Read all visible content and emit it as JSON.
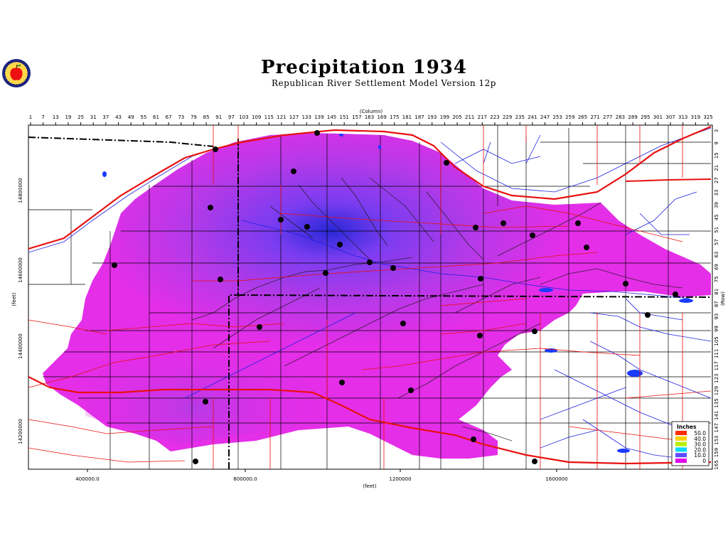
{
  "header": {
    "title": "Precipitation 1934",
    "subtitle": "Republican River Settlement Model Version 12p"
  },
  "logo": {
    "icon": "apple-seal-icon"
  },
  "axes": {
    "top_label": "(Column)",
    "bottom_label": "(feet)",
    "left_label": "(feet)",
    "right_label": "(Row)",
    "column_ticks": [
      "1",
      "7",
      "13",
      "19",
      "25",
      "31",
      "37",
      "43",
      "49",
      "55",
      "61",
      "67",
      "73",
      "79",
      "85",
      "91",
      "97",
      "103",
      "109",
      "115",
      "121",
      "127",
      "133",
      "139",
      "145",
      "151",
      "157",
      "163",
      "169",
      "175",
      "181",
      "187",
      "193",
      "199",
      "205",
      "211",
      "217",
      "223",
      "229",
      "235",
      "241",
      "247",
      "253",
      "259",
      "265",
      "271",
      "277",
      "283",
      "289",
      "295",
      "301",
      "307",
      "313",
      "319",
      "325"
    ],
    "row_ticks": [
      "3",
      "9",
      "15",
      "21",
      "27",
      "33",
      "39",
      "45",
      "51",
      "57",
      "63",
      "69",
      "75",
      "81",
      "87",
      "93",
      "99",
      "105",
      "111",
      "117",
      "123",
      "129",
      "135",
      "141",
      "147",
      "153",
      "159",
      "165"
    ],
    "x_ticks": [
      "400000.0",
      "800000.0",
      "1200000",
      "1600000"
    ],
    "y_ticks": [
      "14800000",
      "14600000",
      "14400000",
      "14200000"
    ]
  },
  "legend": {
    "title": "Inches",
    "items": [
      {
        "label": "50.0",
        "color": "#ff2a00"
      },
      {
        "label": "40.0",
        "color": "#ffd000"
      },
      {
        "label": "30.0",
        "color": "#b8f000"
      },
      {
        "label": "20.0",
        "color": "#00d8ff"
      },
      {
        "label": "10.0",
        "color": "#5a4dff"
      },
      {
        "label": "0",
        "color": "#e000e8"
      }
    ]
  },
  "colors": {
    "model_fill": "#e42ee8",
    "state_line": "#000000",
    "county_line": "#000000",
    "roads": "#e81010",
    "rivers": "#2020e0",
    "stations": "#000000"
  }
}
